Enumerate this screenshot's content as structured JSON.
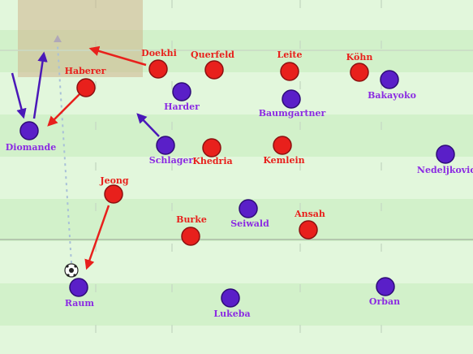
{
  "players": [
    {
      "name": "Doekhi"
    },
    {
      "name": "Querfeld"
    },
    {
      "name": "Leite"
    },
    {
      "name": "Köhn"
    },
    {
      "name": "Haberer"
    },
    {
      "name": "Khedria"
    },
    {
      "name": "Kemlein"
    },
    {
      "name": "Jeong"
    },
    {
      "name": "Burke"
    },
    {
      "name": "Ansah"
    },
    {
      "name": "Harder"
    },
    {
      "name": "Baumgartner"
    },
    {
      "name": "Bakayoko"
    },
    {
      "name": "Diomande"
    },
    {
      "name": "Schlager"
    },
    {
      "name": "Nedeljkovic"
    },
    {
      "name": "Seiwald"
    },
    {
      "name": "Raum"
    },
    {
      "name": "Lukeba"
    },
    {
      "name": "Orban"
    }
  ]
}
